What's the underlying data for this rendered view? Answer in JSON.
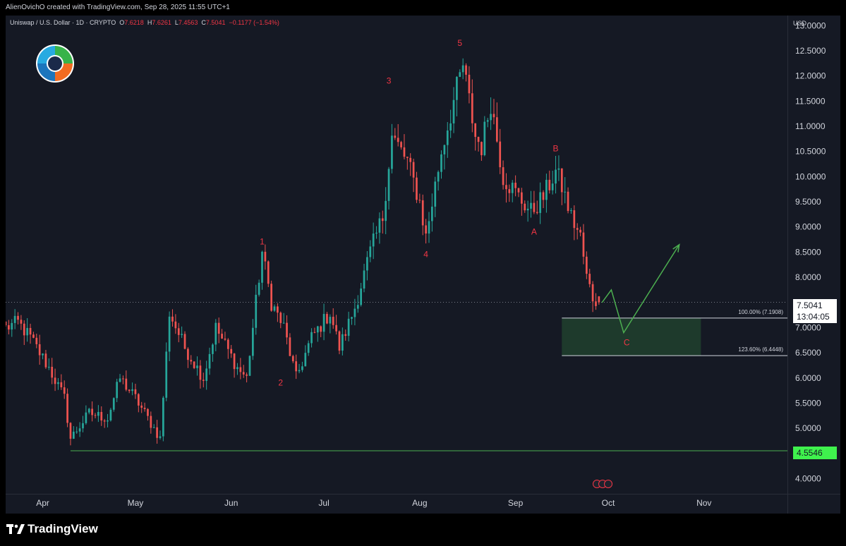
{
  "header": {
    "attribution": "AlienOvichO created with TradingView.com, Sep 28, 2025 11:55 UTC+1"
  },
  "legend": {
    "symbol": "Uniswap / U.S. Dollar · 1D · CRYPTO",
    "o_label": "O",
    "o_value": "7.6218",
    "h_label": "H",
    "h_value": "7.6261",
    "l_label": "L",
    "l_value": "7.4563",
    "c_label": "C",
    "c_value": "7.5041",
    "change": "−0.1177 (−1.54%)"
  },
  "price_axis": {
    "currency": "USD",
    "ticks": [
      "4.0000",
      "4.5000",
      "5.0000",
      "5.5000",
      "6.0000",
      "6.5000",
      "7.0000",
      "7.5000",
      "8.0000",
      "8.5000",
      "9.0000",
      "9.5000",
      "10.0000",
      "10.5000",
      "11.0000",
      "11.5000",
      "12.0000",
      "12.5000",
      "13.0000"
    ],
    "last_price": "7.5041",
    "countdown": "13:04:05",
    "support_label": "4.5546"
  },
  "time_axis": {
    "labels": [
      "Apr",
      "May",
      "Jun",
      "Jul",
      "Aug",
      "Sep",
      "Oct",
      "Nov"
    ]
  },
  "colors": {
    "background": "#151924",
    "up": "#26a69a",
    "down": "#ef5350",
    "wave_label": "#f23645",
    "projection": "#4caf50",
    "support_line": "#4caf50",
    "target_zone": "#1e3a2c"
  },
  "chart_data": {
    "type": "candlestick",
    "symbol": "Uniswap / U.S. Dollar",
    "interval": "1D",
    "ylim": [
      3.7,
      13.2
    ],
    "x_range": [
      "2025-03-20",
      "2025-11-28"
    ],
    "anchors": [
      {
        "date": "2025-03-20",
        "price": 7.0
      },
      {
        "date": "2025-03-24",
        "price": 7.1
      },
      {
        "date": "2025-03-28",
        "price": 6.8
      },
      {
        "date": "2025-04-03",
        "price": 6.2
      },
      {
        "date": "2025-04-08",
        "price": 5.6
      },
      {
        "date": "2025-04-10",
        "price": 4.8
      },
      {
        "date": "2025-04-16",
        "price": 5.3
      },
      {
        "date": "2025-04-22",
        "price": 5.2
      },
      {
        "date": "2025-04-26",
        "price": 6.0
      },
      {
        "date": "2025-05-01",
        "price": 5.6
      },
      {
        "date": "2025-05-07",
        "price": 5.0
      },
      {
        "date": "2025-05-09",
        "price": 4.8
      },
      {
        "date": "2025-05-12",
        "price": 7.3
      },
      {
        "date": "2025-05-17",
        "price": 6.6
      },
      {
        "date": "2025-05-23",
        "price": 6.0
      },
      {
        "date": "2025-05-27",
        "price": 7.0
      },
      {
        "date": "2025-06-03",
        "price": 6.2
      },
      {
        "date": "2025-06-06",
        "price": 6.0
      },
      {
        "date": "2025-06-11",
        "price": 8.5
      },
      {
        "date": "2025-06-14",
        "price": 7.5
      },
      {
        "date": "2025-06-18",
        "price": 7.0
      },
      {
        "date": "2025-06-22",
        "price": 6.0
      },
      {
        "date": "2025-06-27",
        "price": 6.8
      },
      {
        "date": "2025-07-03",
        "price": 7.3
      },
      {
        "date": "2025-07-06",
        "price": 6.6
      },
      {
        "date": "2025-07-11",
        "price": 7.4
      },
      {
        "date": "2025-07-16",
        "price": 8.5
      },
      {
        "date": "2025-07-20",
        "price": 9.2
      },
      {
        "date": "2025-07-23",
        "price": 10.8
      },
      {
        "date": "2025-07-28",
        "price": 10.3
      },
      {
        "date": "2025-08-01",
        "price": 9.5
      },
      {
        "date": "2025-08-03",
        "price": 8.8
      },
      {
        "date": "2025-08-08",
        "price": 10.5
      },
      {
        "date": "2025-08-12",
        "price": 11.5
      },
      {
        "date": "2025-08-15",
        "price": 12.2
      },
      {
        "date": "2025-08-19",
        "price": 10.8
      },
      {
        "date": "2025-08-21",
        "price": 10.6
      },
      {
        "date": "2025-08-24",
        "price": 11.5
      },
      {
        "date": "2025-08-28",
        "price": 10.0
      },
      {
        "date": "2025-09-02",
        "price": 9.6
      },
      {
        "date": "2025-09-06",
        "price": 9.3
      },
      {
        "date": "2025-09-10",
        "price": 9.6
      },
      {
        "date": "2025-09-14",
        "price": 10.1
      },
      {
        "date": "2025-09-16",
        "price": 9.8
      },
      {
        "date": "2025-09-19",
        "price": 9.2
      },
      {
        "date": "2025-09-22",
        "price": 8.8
      },
      {
        "date": "2025-09-24",
        "price": 8.0
      },
      {
        "date": "2025-09-26",
        "price": 7.6
      },
      {
        "date": "2025-09-28",
        "price": 7.5041
      }
    ],
    "last_candle": {
      "open": 7.6218,
      "high": 7.6261,
      "low": 7.4563,
      "close": 7.5041
    },
    "wave_labels": [
      {
        "text": "1",
        "date": "2025-06-11",
        "price": 8.65
      },
      {
        "text": "2",
        "date": "2025-06-17",
        "price": 5.85
      },
      {
        "text": "3",
        "date": "2025-07-22",
        "price": 11.85
      },
      {
        "text": "4",
        "date": "2025-08-03",
        "price": 8.4
      },
      {
        "text": "5",
        "date": "2025-08-14",
        "price": 12.6
      },
      {
        "text": "A",
        "date": "2025-09-07",
        "price": 8.85
      },
      {
        "text": "B",
        "date": "2025-09-14",
        "price": 10.5
      },
      {
        "text": "C",
        "date": "2025-10-07",
        "price": 6.65
      }
    ],
    "fib_levels": [
      {
        "label": "100.00% (7.1908)",
        "price": 7.1908
      },
      {
        "label": "123.60% (6.4448)",
        "price": 6.4448
      }
    ],
    "target_zone": {
      "from_date": "2025-09-16",
      "to_date": "2025-10-31",
      "top": 7.1908,
      "bottom": 6.4448
    },
    "support_level": {
      "price": 4.5546,
      "from_date": "2025-04-10"
    },
    "projection_path": [
      {
        "date": "2025-09-29",
        "price": 7.5
      },
      {
        "date": "2025-10-02",
        "price": 7.75
      },
      {
        "date": "2025-10-06",
        "price": 6.9
      },
      {
        "date": "2025-10-24",
        "price": 8.65
      }
    ]
  },
  "brand": {
    "name": "TradingView"
  }
}
